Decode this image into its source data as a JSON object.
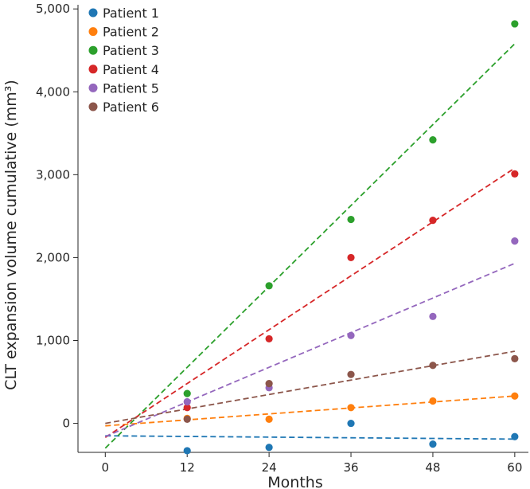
{
  "chart_data": {
    "type": "scatter",
    "title": "",
    "xlabel": "Months",
    "ylabel": "CLT expansion volume cumulative (mm³)",
    "xlim": [
      -4,
      62
    ],
    "ylim": [
      -350,
      5050
    ],
    "x_ticks": [
      0,
      12,
      24,
      36,
      48,
      60
    ],
    "x_tick_labels": [
      "0",
      "12",
      "24",
      "36",
      "48",
      "60"
    ],
    "y_ticks": [
      0,
      1000,
      2000,
      3000,
      4000,
      5000
    ],
    "y_tick_labels": [
      "0",
      "1,000",
      "2,000",
      "3,000",
      "4,000",
      "5,000"
    ],
    "legend_position": "top-left",
    "series": [
      {
        "name": "Patient 1",
        "color": "#1f77b4",
        "x": [
          12,
          24,
          36,
          48,
          60
        ],
        "values": [
          -330,
          -290,
          0,
          -250,
          -160
        ],
        "trend": {
          "x0": 0,
          "y0": -150,
          "x1": 60,
          "y1": -190
        }
      },
      {
        "name": "Patient 2",
        "color": "#ff7f0e",
        "x": [
          12,
          24,
          36,
          48,
          60
        ],
        "values": [
          60,
          50,
          190,
          270,
          330
        ],
        "trend": {
          "x0": 0,
          "y0": -30,
          "x1": 60,
          "y1": 330
        }
      },
      {
        "name": "Patient 3",
        "color": "#2ca02c",
        "x": [
          12,
          24,
          36,
          48,
          60
        ],
        "values": [
          360,
          1660,
          2460,
          3420,
          4820
        ],
        "trend": {
          "x0": 0,
          "y0": -300,
          "x1": 60,
          "y1": 4580
        }
      },
      {
        "name": "Patient 4",
        "color": "#d62728",
        "x": [
          12,
          24,
          36,
          48,
          60
        ],
        "values": [
          190,
          1020,
          2000,
          2450,
          3010
        ],
        "trend": {
          "x0": 0,
          "y0": -170,
          "x1": 60,
          "y1": 3080
        }
      },
      {
        "name": "Patient 5",
        "color": "#9467bd",
        "x": [
          12,
          24,
          36,
          48,
          60
        ],
        "values": [
          260,
          430,
          1060,
          1290,
          2200
        ],
        "trend": {
          "x0": 0,
          "y0": -160,
          "x1": 60,
          "y1": 1930
        }
      },
      {
        "name": "Patient 6",
        "color": "#8c564b",
        "x": [
          12,
          24,
          36,
          48,
          60
        ],
        "values": [
          50,
          480,
          590,
          700,
          780
        ],
        "trend": {
          "x0": 0,
          "y0": 0,
          "x1": 60,
          "y1": 870
        }
      }
    ]
  }
}
